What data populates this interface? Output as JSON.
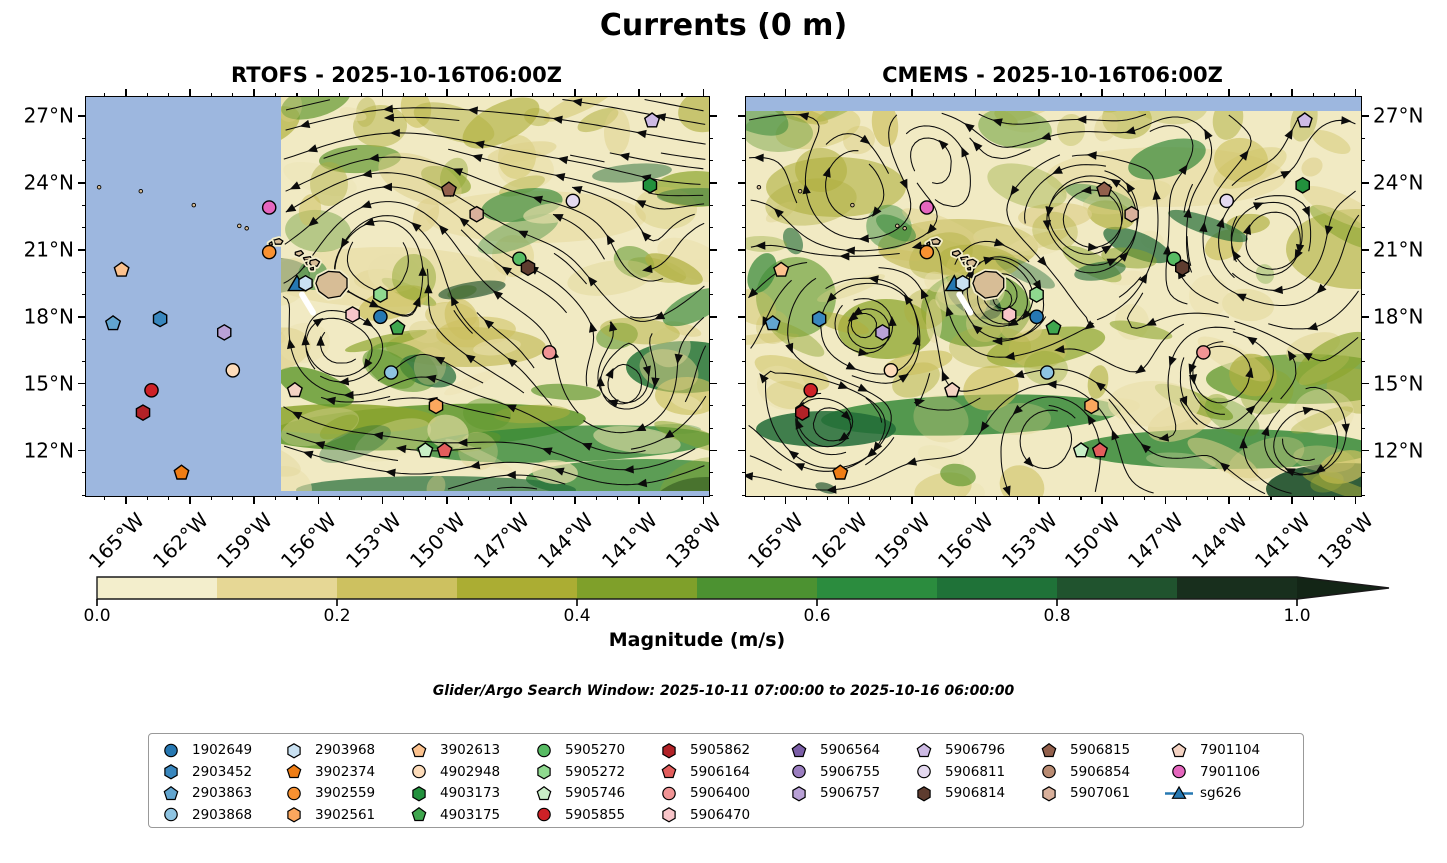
{
  "title": "Currents (0 m)",
  "panels": [
    {
      "id": "rtofs",
      "title": "RTOFS - 2025-10-16T06:00Z"
    },
    {
      "id": "cmems",
      "title": "CMEMS - 2025-10-16T06:00Z"
    }
  ],
  "axes": {
    "lat_labels": [
      "27°N",
      "24°N",
      "21°N",
      "18°N",
      "15°N",
      "12°N"
    ],
    "lon_labels": [
      "165°W",
      "162°W",
      "159°W",
      "156°W",
      "153°W",
      "150°W",
      "147°W",
      "144°W",
      "141°W",
      "138°W"
    ]
  },
  "colorbar": {
    "label": "Magnitude (m/s)",
    "ticks": [
      "0.0",
      "0.2",
      "0.4",
      "0.6",
      "0.8",
      "1.0"
    ],
    "segment_colors": [
      "#F3EECC",
      "#E6D795",
      "#CDC160",
      "#ABAD33",
      "#7FA02A",
      "#4C9231",
      "#2B8C3E",
      "#1F7238",
      "#20532E",
      "#182F1D"
    ],
    "arrow_color": "#132516"
  },
  "search_window": "Glider/Argo Search Window: 2025-10-11 07:00:00 to 2025-10-16 06:00:00",
  "colors": {
    "ocean_nodata": "#9DB7DF",
    "land": "#D7BD96",
    "field_base": "#F1EAC3"
  },
  "legend": {
    "entries": [
      {
        "id": "1902649",
        "shape": "circle",
        "color": "#2678B2"
      },
      {
        "id": "2903452",
        "shape": "hexagon",
        "color": "#3987BE"
      },
      {
        "id": "2903863",
        "shape": "pentagon",
        "color": "#62A5CF"
      },
      {
        "id": "2903868",
        "shape": "circle",
        "color": "#8EC4E2"
      },
      {
        "id": "2903968",
        "shape": "hexagon",
        "color": "#C9E1F2"
      },
      {
        "id": "3902374",
        "shape": "pentagon",
        "color": "#EF7D15"
      },
      {
        "id": "3902559",
        "shape": "circle",
        "color": "#F89131"
      },
      {
        "id": "3902561",
        "shape": "hexagon",
        "color": "#FBA75E"
      },
      {
        "id": "3902613",
        "shape": "pentagon",
        "color": "#FCC28E"
      },
      {
        "id": "4902948",
        "shape": "circle",
        "color": "#FDDCBA"
      },
      {
        "id": "4903173",
        "shape": "hexagon",
        "color": "#22913D"
      },
      {
        "id": "4903175",
        "shape": "pentagon",
        "color": "#3FA64E"
      },
      {
        "id": "5905270",
        "shape": "circle",
        "color": "#57BB63"
      },
      {
        "id": "5905272",
        "shape": "hexagon",
        "color": "#8FD98F"
      },
      {
        "id": "5905746",
        "shape": "pentagon",
        "color": "#C9EFC6"
      },
      {
        "id": "5905855",
        "shape": "circle",
        "color": "#CE2127"
      },
      {
        "id": "5905862",
        "shape": "hexagon",
        "color": "#B22227"
      },
      {
        "id": "5906164",
        "shape": "pentagon",
        "color": "#E25D5C"
      },
      {
        "id": "5906400",
        "shape": "circle",
        "color": "#F19495"
      },
      {
        "id": "5906470",
        "shape": "hexagon",
        "color": "#F8C5C9"
      },
      {
        "id": "5906564",
        "shape": "pentagon",
        "color": "#7B5EA7"
      },
      {
        "id": "5906755",
        "shape": "circle",
        "color": "#9B7EC0"
      },
      {
        "id": "5906757",
        "shape": "hexagon",
        "color": "#B9A1D6"
      },
      {
        "id": "5906796",
        "shape": "pentagon",
        "color": "#CDBAE4"
      },
      {
        "id": "5906811",
        "shape": "circle",
        "color": "#E4D9F0"
      },
      {
        "id": "5906814",
        "shape": "hexagon",
        "color": "#5E3C2F"
      },
      {
        "id": "5906815",
        "shape": "pentagon",
        "color": "#92604C"
      },
      {
        "id": "5906854",
        "shape": "circle",
        "color": "#B98B72"
      },
      {
        "id": "5907061",
        "shape": "hexagon",
        "color": "#D9B09B"
      },
      {
        "id": "7901104",
        "shape": "pentagon",
        "color": "#F4D3C3"
      },
      {
        "id": "7901106",
        "shape": "circle",
        "color": "#E566BE"
      },
      {
        "id": "sg626",
        "shape": "triangle",
        "color": "#2678B2"
      }
    ]
  },
  "chart_data": {
    "type": "map-streamplot-pair",
    "subplots": [
      "RTOFS - 2025-10-16T06:00Z",
      "CMEMS - 2025-10-16T06:00Z"
    ],
    "lon_ticks_deg_w": [
      165,
      162,
      159,
      156,
      153,
      150,
      147,
      144,
      141,
      138
    ],
    "lat_ticks_deg_n": [
      27,
      24,
      21,
      18,
      15,
      12
    ],
    "colorbar": {
      "label": "Magnitude (m/s)",
      "range": [
        0.0,
        1.0
      ],
      "tick_step": 0.2,
      "extend": "max"
    },
    "rtofs_nodata_west_of_lon": -157.7,
    "cmems_nodata_north_of_lat": 27.2,
    "platforms": [
      {
        "id": "5906796",
        "lon": -140.4,
        "lat": 26.8
      },
      {
        "id": "4903173",
        "lon": -140.5,
        "lat": 23.9
      },
      {
        "id": "5906815",
        "lon": -149.9,
        "lat": 23.7
      },
      {
        "id": "5906811",
        "lon": -144.1,
        "lat": 23.2
      },
      {
        "id": "7901106",
        "lon": -158.3,
        "lat": 22.9
      },
      {
        "id": "5907061",
        "lon": -148.6,
        "lat": 22.6
      },
      {
        "id": "3902559",
        "lon": -158.3,
        "lat": 20.9
      },
      {
        "id": "5905270",
        "lon": -146.6,
        "lat": 20.6
      },
      {
        "id": "5906814",
        "lon": -146.2,
        "lat": 20.2
      },
      {
        "id": "3902613",
        "lon": -165.2,
        "lat": 20.1
      },
      {
        "id": "sg626",
        "lon": -157.0,
        "lat": 19.4
      },
      {
        "id": "2903968",
        "lon": -156.6,
        "lat": 19.5
      },
      {
        "id": "5905272",
        "lon": -153.1,
        "lat": 19.0
      },
      {
        "id": "5906470",
        "lon": -154.4,
        "lat": 18.1
      },
      {
        "id": "1902649",
        "lon": -153.1,
        "lat": 18.0
      },
      {
        "id": "2903452",
        "lon": -163.4,
        "lat": 17.9
      },
      {
        "id": "2903863",
        "lon": -165.6,
        "lat": 17.7
      },
      {
        "id": "4903175",
        "lon": -152.3,
        "lat": 17.5
      },
      {
        "id": "5906757",
        "lon": -160.4,
        "lat": 17.3
      },
      {
        "id": "5906400",
        "lon": -145.2,
        "lat": 16.4
      },
      {
        "id": "4902948",
        "lon": -160.0,
        "lat": 15.6
      },
      {
        "id": "2903868",
        "lon": -152.6,
        "lat": 15.5
      },
      {
        "id": "7901104",
        "lon": -157.1,
        "lat": 14.7
      },
      {
        "id": "5905855",
        "lon": -163.8,
        "lat": 14.7
      },
      {
        "id": "3902561",
        "lon": -150.5,
        "lat": 14.0
      },
      {
        "id": "5905862",
        "lon": -164.2,
        "lat": 13.7
      },
      {
        "id": "5905746",
        "lon": -151.0,
        "lat": 12.0
      },
      {
        "id": "5906164",
        "lon": -150.1,
        "lat": 12.0
      },
      {
        "id": "3902374",
        "lon": -162.4,
        "lat": 11.0
      }
    ]
  }
}
